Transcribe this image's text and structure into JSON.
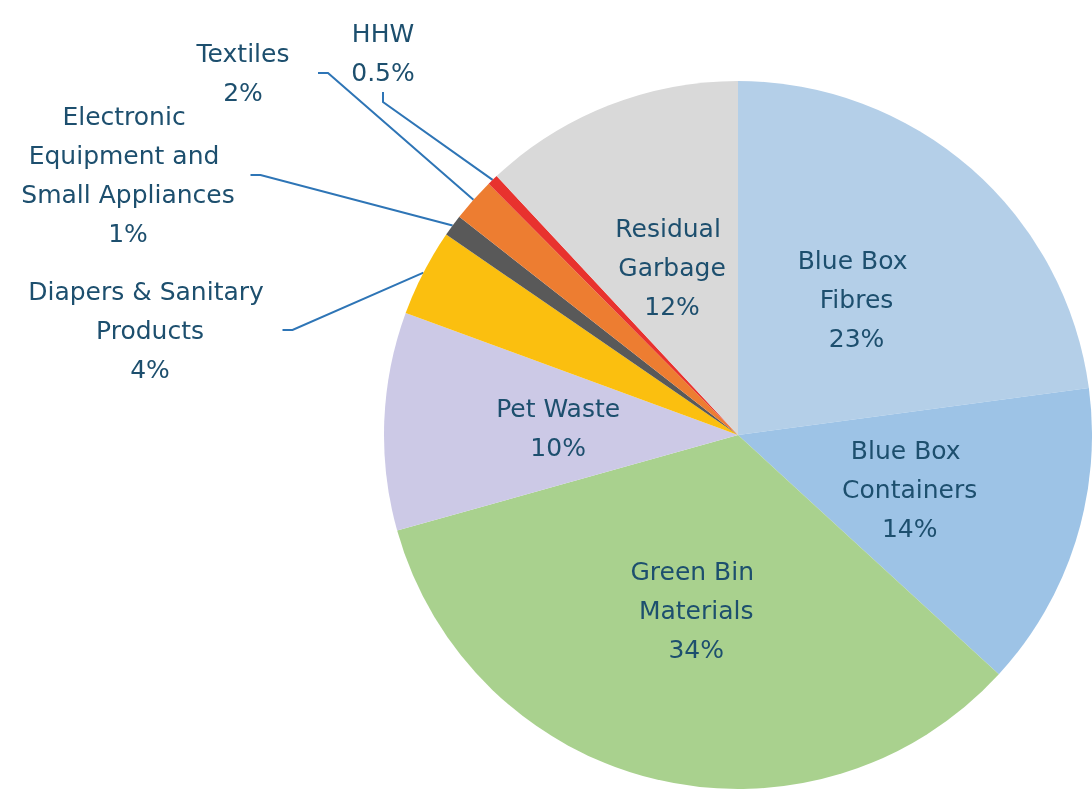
{
  "chart_data": {
    "type": "pie",
    "categories": [
      "Blue Box Fibres",
      "Blue Box Containers",
      "Green Bin Materials",
      "Pet Waste",
      "Diapers & Sanitary Products",
      "Electronic Equipment and Small Appliances",
      "Textiles",
      "HHW",
      "Residual Garbage"
    ],
    "values": [
      23,
      14,
      34,
      10,
      4,
      1,
      2,
      0.5,
      12
    ],
    "value_labels": [
      "23%",
      "14%",
      "34%",
      "10%",
      "4%",
      "1%",
      "2%",
      "0.5%",
      "12%"
    ],
    "colors": [
      "#b4cfe8",
      "#9dc3e6",
      "#a9d18e",
      "#ccc9e6",
      "#fbbf0f",
      "#595959",
      "#ed7d31",
      "#e8322e",
      "#d9d9d9"
    ],
    "legend": false
  }
}
